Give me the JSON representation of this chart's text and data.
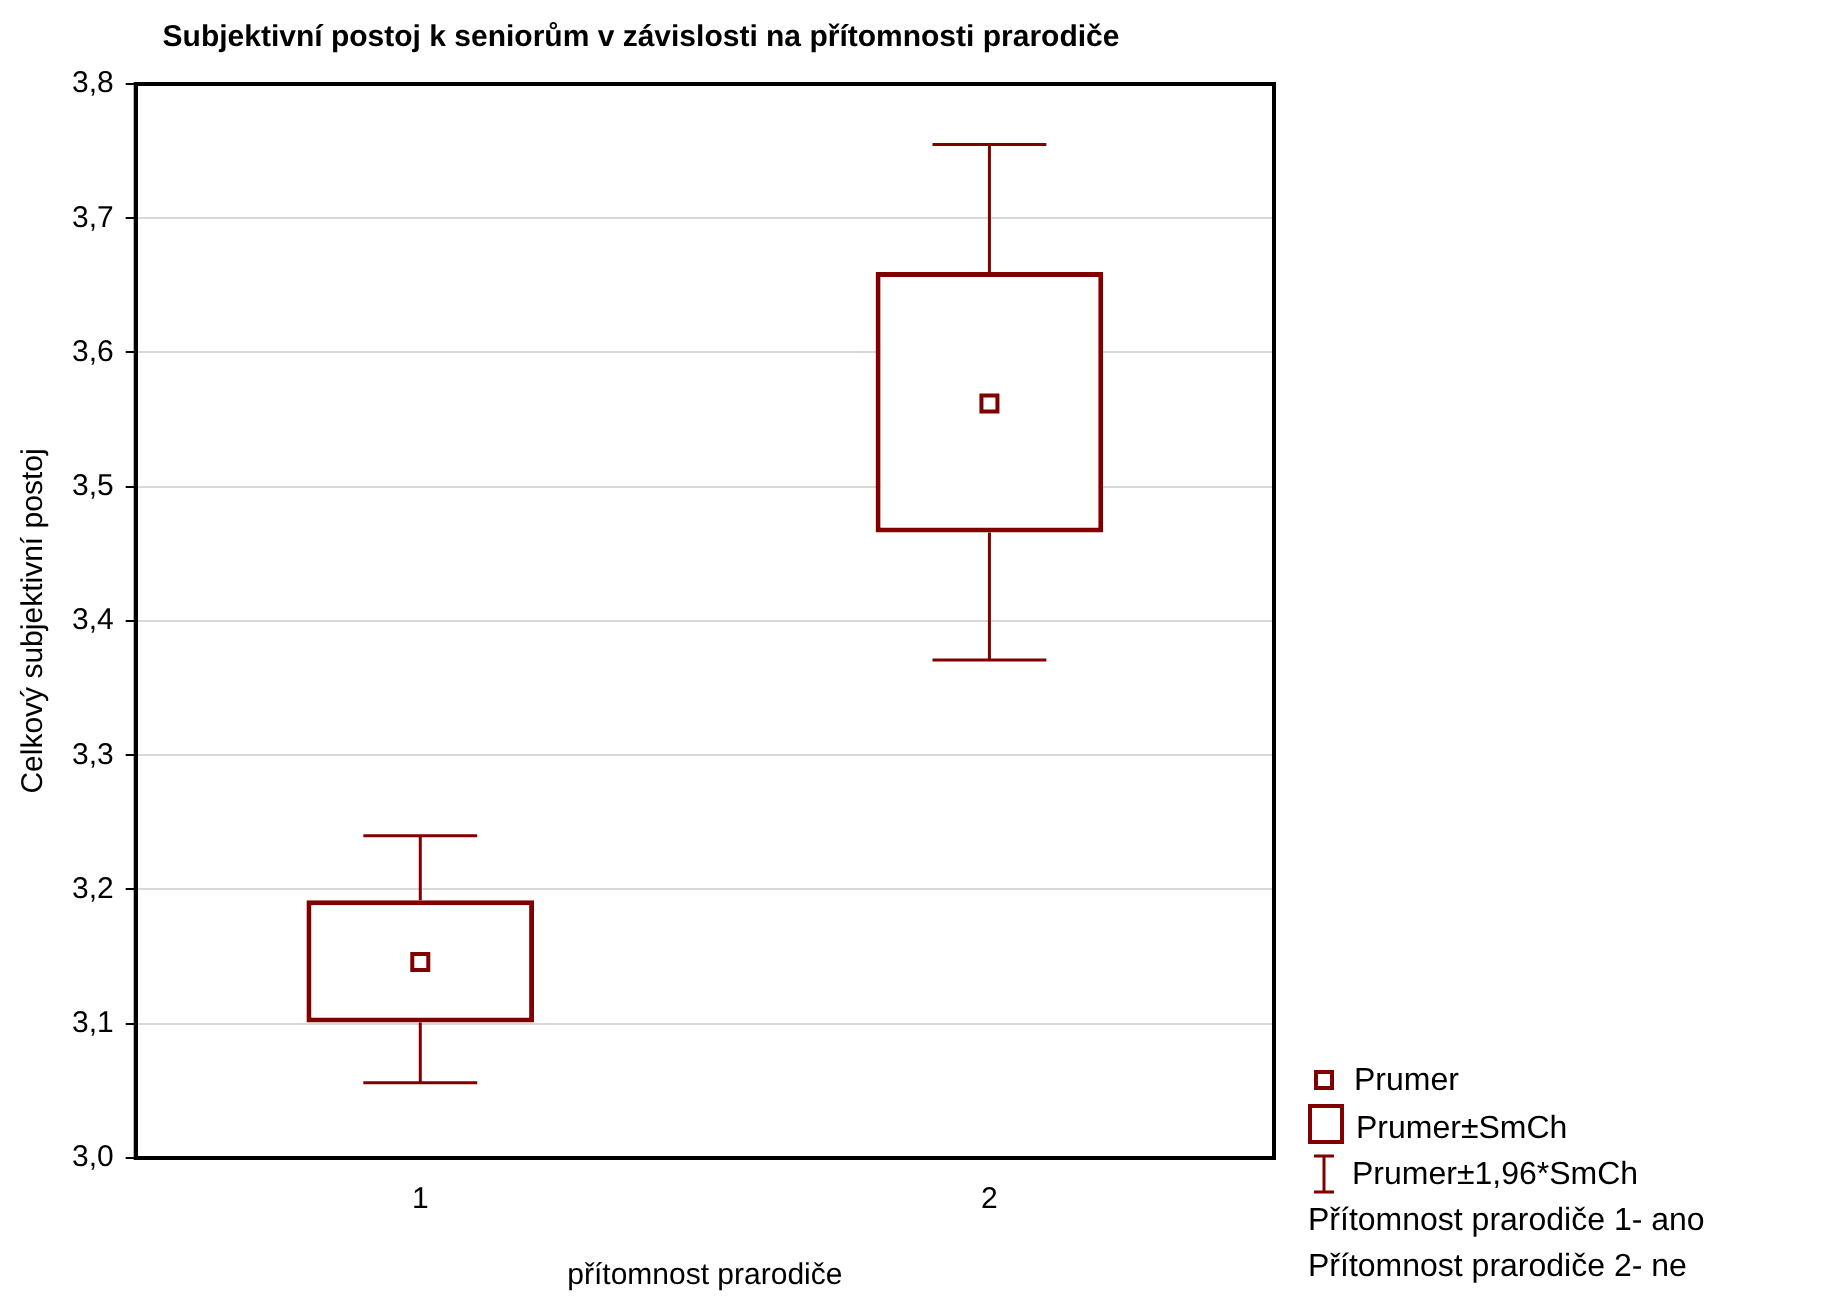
{
  "chart_data": {
    "type": "box",
    "title": "Subjektivní postoj k seniorům v závislosti na přítomnosti prarodiče",
    "xlabel": "přítomnost prarodiče",
    "ylabel": "Celkový subjektivní postoj",
    "categories": [
      "1",
      "2"
    ],
    "boxes": [
      {
        "low": 3.056,
        "q1": 3.101,
        "median": 3.146,
        "q3": 3.192,
        "high": 3.24
      },
      {
        "low": 3.371,
        "q1": 3.466,
        "median": 3.562,
        "q3": 3.66,
        "high": 3.755
      }
    ],
    "color": "#800000",
    "ylim": [
      3.0,
      3.8
    ],
    "yticks": [
      {
        "value": 3.0,
        "label": "3,0"
      },
      {
        "value": 3.1,
        "label": "3,1"
      },
      {
        "value": 3.2,
        "label": "3,2"
      },
      {
        "value": 3.3,
        "label": "3,3"
      },
      {
        "value": 3.4,
        "label": "3,4"
      },
      {
        "value": 3.5,
        "label": "3,5"
      },
      {
        "value": 3.6,
        "label": "3,6"
      },
      {
        "value": 3.7,
        "label": "3,7"
      },
      {
        "value": 3.8,
        "label": "3,8"
      }
    ],
    "grid": "y",
    "annotations": [
      "Prumer",
      "Prumer±SmCh",
      "Prumer±1,96*SmCh",
      "Přítomnost prarodiče 1- ano",
      "Přítomnost prarodiče 2- ne"
    ]
  }
}
